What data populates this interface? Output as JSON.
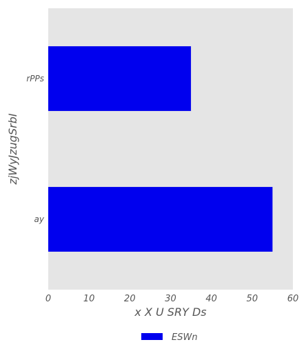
{
  "chart_data": {
    "type": "bar",
    "orientation": "horizontal",
    "categories": [
      "ay",
      "rPPs"
    ],
    "series": [
      {
        "name": "ESWn",
        "values": [
          55,
          35
        ],
        "color": "#0000ee"
      }
    ],
    "xlabel": "x X U  SRY Ds",
    "ylabel": "zjWyJzugSrbI",
    "xlim": [
      0,
      60
    ],
    "xticks": [
      0,
      10,
      20,
      30,
      40,
      50,
      60
    ],
    "grid": false,
    "background": "#e5e5e5",
    "legend": {
      "position": "bottom-center"
    }
  }
}
